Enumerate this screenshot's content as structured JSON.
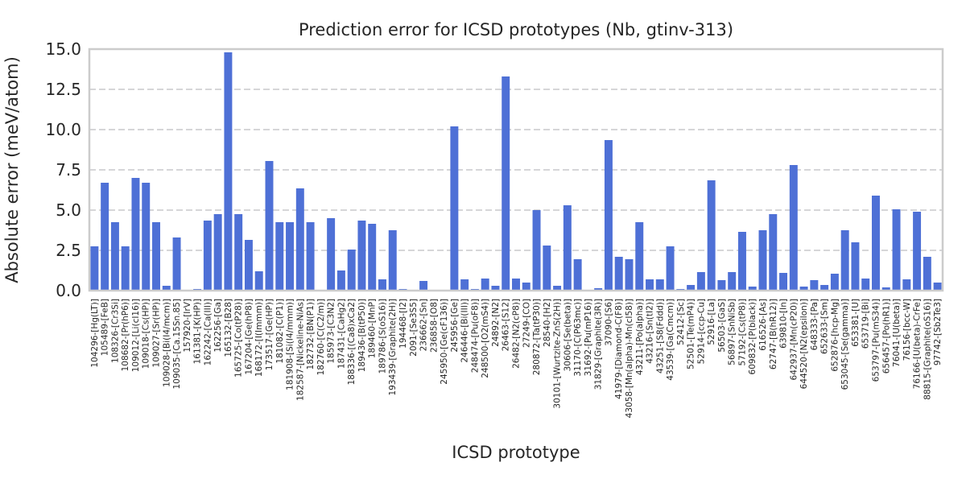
{
  "chart_data": {
    "type": "bar",
    "title": "Prediction error for ICSD prototypes (Nb, gtinv-313)",
    "xlabel": "ICSD prototype",
    "ylabel": "Absolute error (meV/atom)",
    "ylim": [
      0,
      15.0
    ],
    "yticks": [
      "0.0",
      "2.5",
      "5.0",
      "7.5",
      "10.0",
      "12.5",
      "15.0"
    ],
    "grid": "horizontal-dashed",
    "bar_color": "#4e70d6",
    "categories": [
      "104296-[Hg(LT)]",
      "105489-[FeB]",
      "108326-[Cr3Si]",
      "108682-[Pr(hP6)]",
      "109012-[Li(cI16)]",
      "109018-[Cs(HP)]",
      "109027-[Sr(HP)]",
      "109028-[Bi(I4/mcm)]",
      "109035-[Ca.15Sn.85]",
      "157920-[IrV]",
      "161381-[K(HP)]",
      "162242-[Ca(III)]",
      "162256-[Ga]",
      "165132-[B28]",
      "165725-[Co(tP28)]",
      "167204-[Ge(hP8)]",
      "168172-[I(Immm)]",
      "173517-[Ge(HP)]",
      "181082-[C(P1)]",
      "181908-[Si(I4/mmm)]",
      "182587-[Nickeline-NiAs]",
      "182732-[BN(P1)]",
      "182760-[C(C2/m)]",
      "185973-[C3N2]",
      "187431-[CaHg2]",
      "188336-[(Ca8)xCa2]",
      "189436-[B(tP50)]",
      "189460-[MnP]",
      "189786-[S(oS16)]",
      "193439-[Graphite(2H)]",
      "194468-[I2]",
      "2091-[Se3S5]",
      "236662-[Sn]",
      "236858-[O8]",
      "245950-[Ge(cF136)]",
      "245956-[Ge]",
      "246446-[Bi(III)]",
      "248474-[Pu(oF8)]",
      "248500-[O2(mS4)]",
      "24892-[N2]",
      "26463-[S12]",
      "26482-[N2(cP8)]",
      "27249-[CO]",
      "280872-[Ta(tP30)]",
      "28540-[H2]",
      "30101-[Wurtzite-ZnS(2H)]",
      "30606-[Se(beta)]",
      "31170-[C(P63mc)]",
      "31692-[Pu(mP16)]",
      "31829-[Graphite(3R)]",
      "37090-[S6]",
      "41979-[Diamond-C(F8)]",
      "43058-[Mn(alpha)-Mn(cI58)]",
      "43211-[Po(alpha)]",
      "43216-[Sn(tI2)]",
      "43251-[S8(Fddd)]",
      "43539-[Ga(Cmcm)]",
      "52412-[Sc]",
      "52501-[Te(mP4)]",
      "52914-[ccp-Cu]",
      "52916-[La]",
      "56503-[GaS]",
      "56897-[SnNiSb]",
      "57192-[Cs(tP8)]",
      "609832-[P(black)]",
      "616526-[As]",
      "62747-[B(hR12)]",
      "639810-[In]",
      "642937-[Mn(cP20)]",
      "644520-[N2(epsilon)]",
      "648333-[Pa]",
      "652633-[Sm]",
      "652876-[hcp-Mg]",
      "653045-[Se(gamma)]",
      "653381-[U]",
      "653719-[Bi]",
      "653797-[Pu(mS34)]",
      "656457-[Po(hR1)]",
      "76041-[U(beta)]",
      "76156-[bcc-W]",
      "76166-[U(beta)-CrFe]",
      "88815-[Graphite(oS16)]",
      "97742-[Sb2Te3]"
    ],
    "values": [
      2.75,
      6.7,
      4.25,
      2.75,
      7.0,
      6.7,
      4.25,
      0.3,
      3.3,
      0.0,
      0.1,
      4.35,
      4.75,
      14.8,
      4.75,
      3.15,
      1.2,
      8.05,
      4.25,
      4.25,
      6.35,
      4.25,
      0.0,
      4.5,
      1.25,
      2.55,
      4.35,
      4.15,
      0.7,
      3.75,
      0.1,
      0.0,
      0.6,
      0.0,
      0.0,
      10.2,
      0.7,
      0.1,
      0.75,
      0.3,
      13.3,
      0.75,
      0.5,
      5.0,
      2.8,
      0.3,
      5.3,
      1.95,
      0.0,
      0.15,
      9.35,
      2.1,
      1.95,
      4.25,
      0.7,
      0.7,
      2.75,
      0.1,
      0.35,
      1.15,
      6.85,
      0.65,
      1.15,
      3.65,
      0.25,
      3.75,
      4.75,
      1.1,
      7.8,
      0.25,
      0.65,
      0.35,
      1.05,
      3.75,
      3.0,
      0.75,
      5.9,
      0.2,
      5.05,
      0.7,
      4.9,
      2.1,
      0.5
    ]
  }
}
